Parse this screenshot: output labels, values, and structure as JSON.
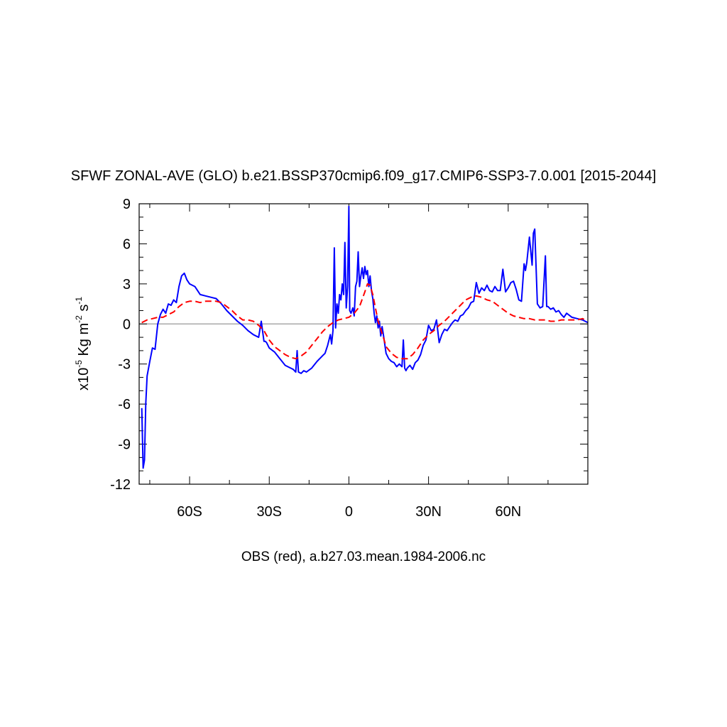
{
  "chart_data": {
    "type": "line",
    "title": "SFWF ZONAL-AVE (GLO) b.e21.BSSP370cmip6.f09_g17.CMIP6-SSP3-7.0.001 [2015-2044]",
    "subtitle": "OBS (red), a.b27.03.mean.1984-2006.nc",
    "ylabel": {
      "prefix": "x10",
      "exp1": "-5",
      "mid": " Kg m",
      "exp2": "-2",
      "mid2": " s",
      "exp3": "-1"
    },
    "xlim": [
      -79,
      90
    ],
    "ylim": [
      -12,
      9
    ],
    "yticks": [
      9,
      6,
      3,
      0,
      -3,
      -6,
      -9,
      -12
    ],
    "ytick_labels": [
      "9",
      "6",
      "3",
      "0",
      "-3",
      "-6",
      "-9",
      "-12"
    ],
    "xticks": [
      -60,
      -30,
      0,
      30,
      60
    ],
    "xtick_labels": [
      "60S",
      "30S",
      "0",
      "30N",
      "60N"
    ],
    "zero_line": true,
    "series": [
      {
        "color": "#0000ff",
        "dash": "solid",
        "x": [
          -78,
          -77.5,
          -77,
          -76.5,
          -76,
          -75,
          -74,
          -73,
          -72,
          -71,
          -70,
          -69,
          -68,
          -67,
          -66,
          -65,
          -64,
          -63,
          -62,
          -61,
          -60,
          -58,
          -56,
          -54,
          -52,
          -50,
          -48,
          -46,
          -44,
          -42,
          -40,
          -38,
          -36,
          -34,
          -33,
          -32,
          -31.5,
          -31,
          -30,
          -28,
          -26,
          -24,
          -22,
          -21,
          -20,
          -19.5,
          -19,
          -18,
          -17,
          -16,
          -14,
          -12,
          -10,
          -9,
          -8,
          -7,
          -6.5,
          -6,
          -5.5,
          -5,
          -4.5,
          -4,
          -3.5,
          -3,
          -2.5,
          -2,
          -1.5,
          -1,
          -0.5,
          0,
          0.3,
          0.8,
          1.5,
          2,
          2.5,
          3,
          3.5,
          4,
          4.5,
          5,
          5.5,
          6,
          6.5,
          7,
          7.5,
          8,
          8.5,
          9,
          9.5,
          10,
          10.5,
          11,
          11.5,
          12,
          12.5,
          13,
          14,
          15,
          16,
          17,
          18,
          19,
          20,
          20.5,
          21,
          21.5,
          22,
          23,
          24,
          25,
          26,
          27,
          28,
          29,
          30,
          31,
          32,
          33,
          34,
          35,
          36,
          37,
          38,
          39,
          40,
          41,
          42,
          43,
          44,
          45,
          46,
          47,
          48,
          49,
          50,
          51,
          52,
          53,
          54,
          55,
          56,
          57,
          58,
          59,
          60,
          61,
          62,
          63,
          64,
          65,
          66,
          66.5,
          67,
          68,
          69,
          69.5,
          70,
          71,
          72,
          73,
          74,
          74.5,
          75,
          76,
          77,
          78,
          79,
          80,
          81,
          82,
          84,
          86,
          88,
          90
        ],
        "y": [
          -6.3,
          -10.8,
          -10.2,
          -6,
          -3.9,
          -2.8,
          -1.8,
          -1.9,
          0,
          0.7,
          1.1,
          0.8,
          1.5,
          1.4,
          1.8,
          1.6,
          2.8,
          3.6,
          3.8,
          3.3,
          3,
          2.8,
          2.2,
          2.1,
          2,
          1.9,
          1.5,
          1,
          0.6,
          0.2,
          -0.1,
          -0.5,
          -0.8,
          -1,
          0.2,
          -1.3,
          -1.3,
          -1.4,
          -1.8,
          -2.1,
          -2.6,
          -3.1,
          -3.3,
          -3.4,
          -3.6,
          -2,
          -3.6,
          -3.7,
          -3.5,
          -3.6,
          -3.3,
          -2.8,
          -2.4,
          -2.2,
          -1.6,
          -0.8,
          -1.5,
          -0.5,
          5.7,
          -0.3,
          1.5,
          0.8,
          2.2,
          1.8,
          3,
          2.2,
          6.1,
          1.2,
          2.8,
          8.8,
          1,
          0.8,
          1.2,
          0.6,
          2.8,
          3.2,
          5.4,
          2.8,
          3.6,
          4.2,
          3.4,
          4.3,
          3.7,
          4,
          2.8,
          3.6,
          2.5,
          1.9,
          0.8,
          0.1,
          0.6,
          -0.3,
          0.2,
          -0.9,
          -0.2,
          -0.8,
          -2.2,
          -2.6,
          -2.8,
          -2.9,
          -3.2,
          -3,
          -3.2,
          -1.2,
          -3.3,
          -3.5,
          -3.3,
          -3.1,
          -3.4,
          -2.9,
          -2.7,
          -2.3,
          -1.6,
          -1.2,
          -0.1,
          -0.5,
          -0.4,
          0.3,
          -1.4,
          -0.8,
          -0.4,
          -0.5,
          -0.2,
          0.1,
          0.3,
          0.2,
          0.6,
          0.7,
          1,
          1.2,
          1.6,
          1.7,
          3.1,
          2.3,
          2.7,
          2.5,
          2.9,
          2.5,
          2.4,
          2.8,
          2.5,
          2.5,
          4.1,
          2.4,
          2.7,
          3.1,
          3.2,
          2.6,
          1.8,
          1.7,
          4.5,
          4,
          4.6,
          6.5,
          4.4,
          6.8,
          7.1,
          1.5,
          1.2,
          1.3,
          5.1,
          1.3,
          1.3,
          1.1,
          1.2,
          0.9,
          1,
          0.7,
          0.5,
          0.8,
          0.5,
          0.4,
          0.3,
          0.1
        ]
      },
      {
        "name": "OBS",
        "color": "#ff0000",
        "dash": "dashed",
        "x": [
          -78,
          -76,
          -74,
          -72,
          -70,
          -68,
          -66,
          -64,
          -62,
          -60,
          -58,
          -56,
          -54,
          -52,
          -50,
          -48,
          -46,
          -44,
          -42,
          -40,
          -38,
          -36,
          -34,
          -32,
          -30,
          -28,
          -26,
          -24,
          -22,
          -20,
          -18,
          -16,
          -14,
          -12,
          -10,
          -8,
          -6,
          -4,
          -2,
          0,
          2,
          4,
          6,
          7,
          8,
          9,
          10,
          11,
          12,
          13,
          14,
          16,
          18,
          20,
          22,
          24,
          26,
          28,
          30,
          32,
          34,
          36,
          38,
          40,
          42,
          44,
          46,
          48,
          50,
          52,
          54,
          56,
          58,
          60,
          62,
          64,
          66,
          68,
          70,
          72,
          74,
          76,
          78,
          80,
          82,
          84,
          86,
          88,
          89
        ],
        "y": [
          0.1,
          0.3,
          0.4,
          0.5,
          0.5,
          0.7,
          0.9,
          1.3,
          1.6,
          1.7,
          1.7,
          1.6,
          1.7,
          1.7,
          1.7,
          1.6,
          1.3,
          1,
          0.6,
          0.3,
          0.3,
          0.2,
          -0.1,
          -0.5,
          -1.2,
          -1.7,
          -2,
          -2.3,
          -2.5,
          -2.6,
          -2.4,
          -2.1,
          -1.6,
          -1.1,
          -0.6,
          -0.2,
          0.1,
          0.3,
          0.4,
          0.5,
          0.8,
          1.3,
          2.4,
          3,
          2.9,
          2.2,
          1.2,
          0.2,
          -0.4,
          -1,
          -1.7,
          -2.2,
          -2.5,
          -2.6,
          -2.6,
          -2.3,
          -1.8,
          -1.2,
          -0.8,
          -0.5,
          -0.1,
          0.2,
          0.6,
          1,
          1.4,
          1.8,
          2,
          2.1,
          2,
          1.8,
          1.7,
          1.4,
          1.1,
          0.8,
          0.6,
          0.5,
          0.4,
          0.4,
          0.3,
          0.3,
          0.3,
          0.2,
          0.2,
          0.3,
          0.3,
          0.3,
          0.3,
          0.4,
          0.3
        ]
      }
    ]
  }
}
